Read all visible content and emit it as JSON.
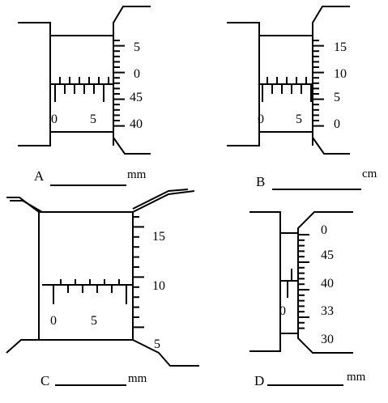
{
  "panels": [
    {
      "id": "A",
      "label": "A",
      "unit": "mm",
      "sleeve_labels": [
        "0",
        "5"
      ],
      "thimble_labels": [
        "5",
        "0",
        "45",
        "40"
      ]
    },
    {
      "id": "B",
      "label": "B",
      "unit": "cm",
      "sleeve_labels": [
        "0",
        "5"
      ],
      "thimble_labels": [
        "15",
        "10",
        "5",
        "0"
      ]
    },
    {
      "id": "C",
      "label": "C",
      "unit": "mm",
      "sleeve_labels": [
        "0",
        "5"
      ],
      "thimble_labels": [
        "15",
        "10",
        "5"
      ]
    },
    {
      "id": "D",
      "label": "D",
      "unit": "mm",
      "sleeve_labels": [
        "0"
      ],
      "thimble_labels": [
        "0",
        "45",
        "40",
        "33",
        "30"
      ]
    }
  ]
}
